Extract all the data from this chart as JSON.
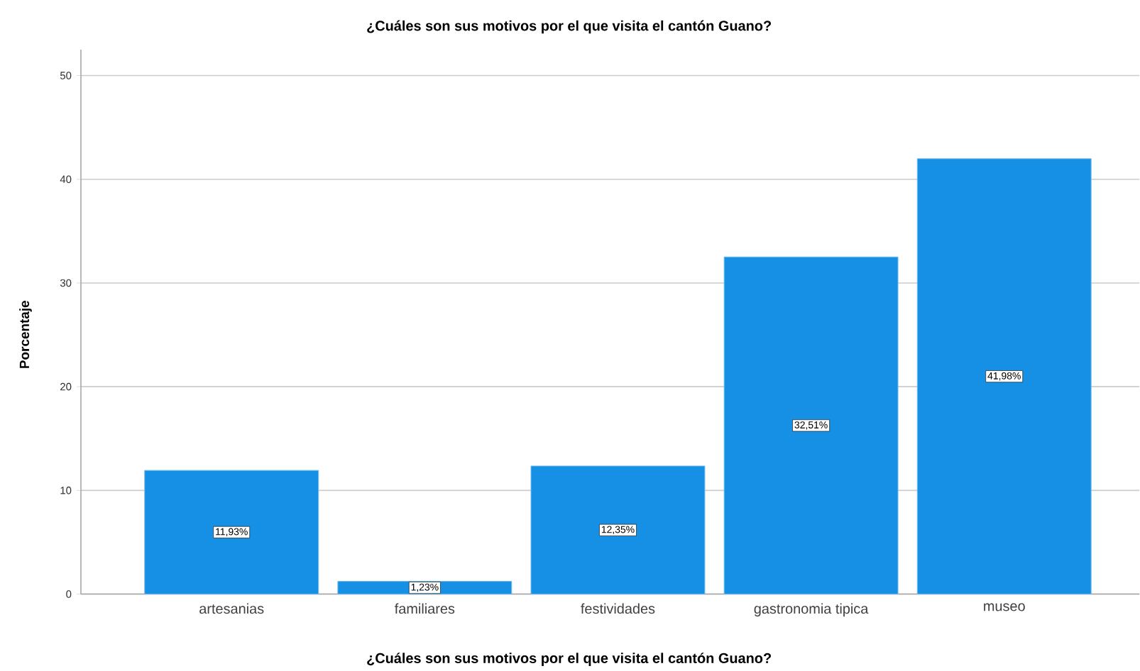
{
  "chart_data": {
    "type": "bar",
    "title": "¿Cuáles son sus motivos por el que visita el cantón Guano?",
    "xlabel": "¿Cuáles son sus motivos por el que visita el cantón Guano?",
    "ylabel": "Porcentaje",
    "categories": [
      "artesanias",
      "familiares",
      "festividades",
      "gastronomia tipica",
      "museo"
    ],
    "values": [
      11.93,
      1.23,
      12.35,
      32.51,
      41.98
    ],
    "value_labels": [
      "11,93%",
      "1,23%",
      "12,35%",
      "32,51%",
      "41,98%"
    ],
    "color": "#1590e4",
    "ylim": [
      0,
      52.5
    ],
    "yticks": [
      0,
      10,
      20,
      30,
      40,
      50
    ],
    "grid": "y"
  }
}
